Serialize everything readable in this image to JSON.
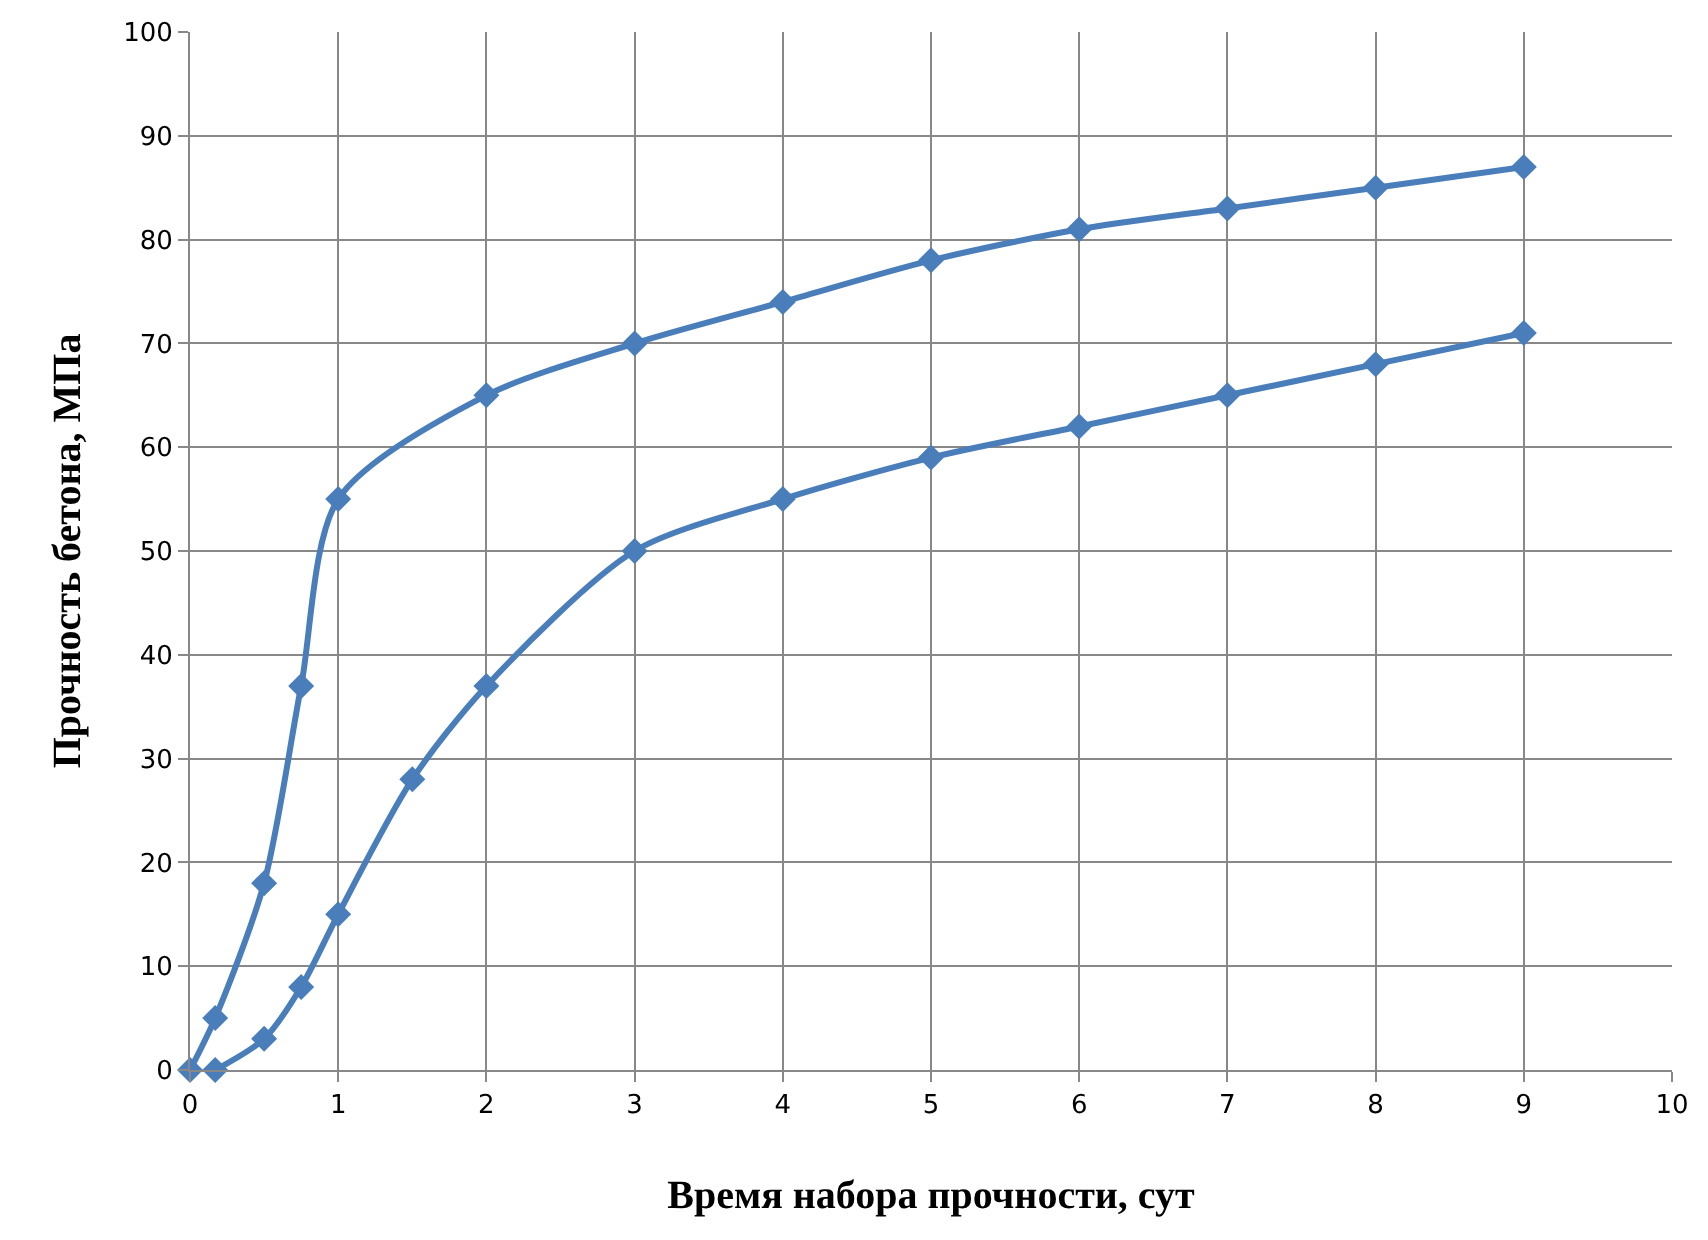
{
  "chart_data": {
    "type": "line",
    "xlabel": "Время набора прочности, сут",
    "ylabel": "Прочность бетона, МПа",
    "series": [
      {
        "color": "#4a7ebb",
        "x": [
          0,
          0.17,
          0.5,
          0.75,
          1,
          2,
          3,
          4,
          5,
          6,
          7,
          8,
          9
        ],
        "values": [
          0,
          5,
          18,
          37,
          55,
          65,
          70,
          74,
          78,
          81,
          83,
          85,
          87
        ]
      },
      {
        "color": "#4a7ebb",
        "x": [
          0.17,
          0.5,
          0.75,
          1,
          1.5,
          2,
          3,
          4,
          5,
          6,
          7,
          8,
          9
        ],
        "values": [
          0,
          3,
          8,
          15,
          28,
          37,
          50,
          55,
          59,
          62,
          65,
          68,
          71
        ]
      }
    ],
    "xlim": [
      0,
      10
    ],
    "xticks": [
      0,
      1,
      2,
      3,
      4,
      5,
      6,
      7,
      8,
      9,
      10
    ],
    "ylim": [
      0,
      100
    ],
    "yticks": [
      0,
      10,
      20,
      30,
      40,
      50,
      60,
      70,
      80,
      90,
      100
    ],
    "grid": true,
    "marker": "diamond",
    "line_style": "solid"
  }
}
